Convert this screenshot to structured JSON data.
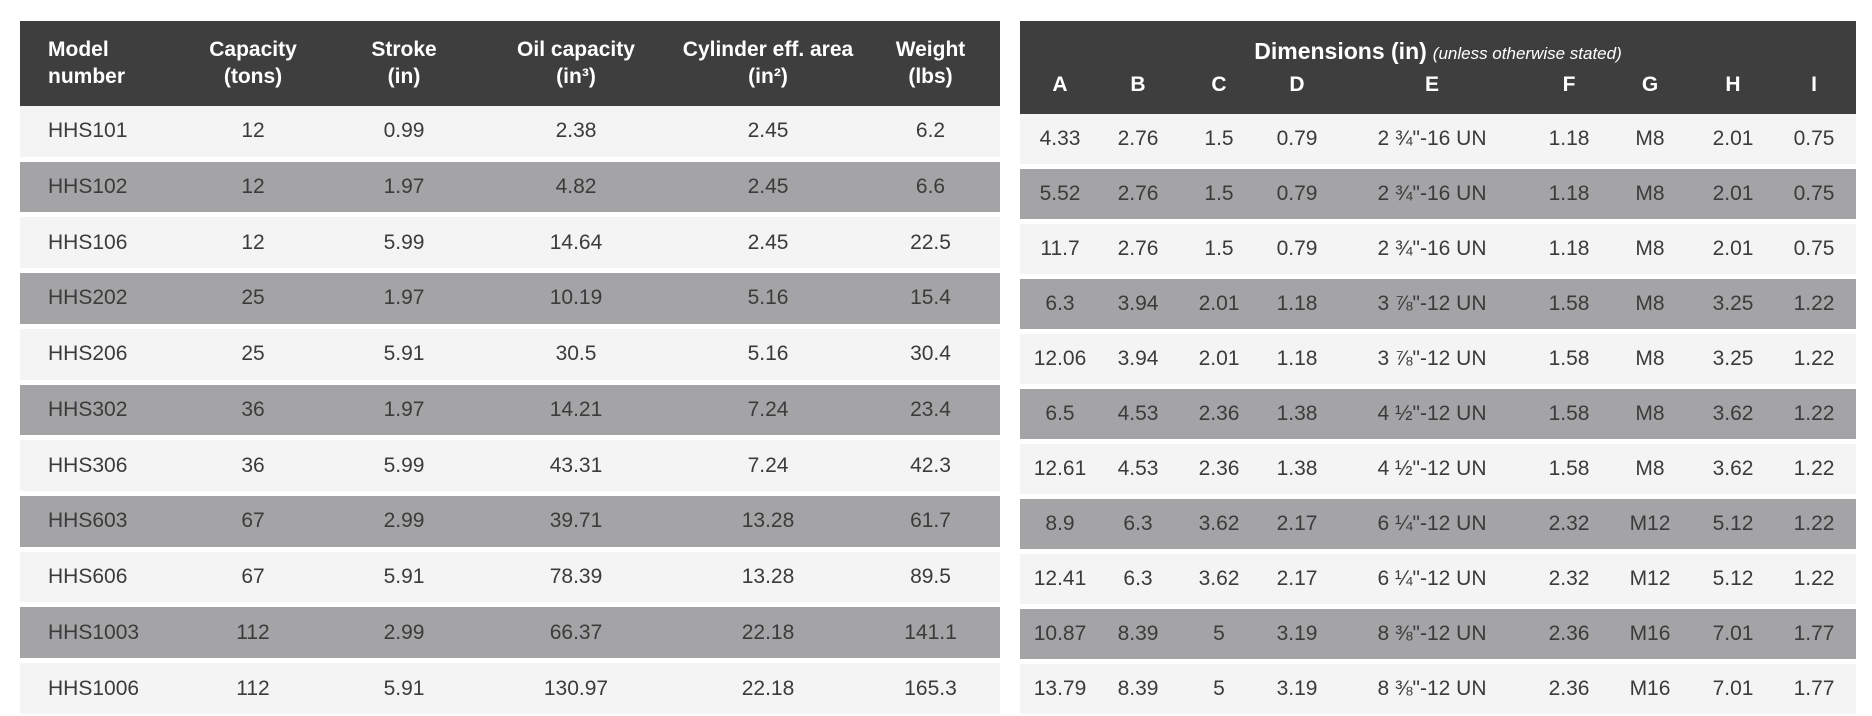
{
  "colors": {
    "header_bg": "#3e3e3e",
    "header_text": "#ffffff",
    "row_light": "#f4f4f4",
    "row_gray": "#a4a4a6",
    "body_text": "#3b3b3b"
  },
  "left_table": {
    "headers": [
      {
        "l1": "Model",
        "l2": "number"
      },
      {
        "l1": "Capacity",
        "l2": "(tons)"
      },
      {
        "l1": "Stroke",
        "l2": "(in)"
      },
      {
        "l1": "Oil capacity",
        "l2": "(in³)"
      },
      {
        "l1": "Cylinder eff. area",
        "l2": "(in²)"
      },
      {
        "l1": "Weight",
        "l2": "(lbs)"
      }
    ],
    "rows": [
      [
        "HHS101",
        "12",
        "0.99",
        "2.38",
        "2.45",
        "6.2"
      ],
      [
        "HHS102",
        "12",
        "1.97",
        "4.82",
        "2.45",
        "6.6"
      ],
      [
        "HHS106",
        "12",
        "5.99",
        "14.64",
        "2.45",
        "22.5"
      ],
      [
        "HHS202",
        "25",
        "1.97",
        "10.19",
        "5.16",
        "15.4"
      ],
      [
        "HHS206",
        "25",
        "5.91",
        "30.5",
        "5.16",
        "30.4"
      ],
      [
        "HHS302",
        "36",
        "1.97",
        "14.21",
        "7.24",
        "23.4"
      ],
      [
        "HHS306",
        "36",
        "5.99",
        "43.31",
        "7.24",
        "42.3"
      ],
      [
        "HHS603",
        "67",
        "2.99",
        "39.71",
        "13.28",
        "61.7"
      ],
      [
        "HHS606",
        "67",
        "5.91",
        "78.39",
        "13.28",
        "89.5"
      ],
      [
        "HHS1003",
        "112",
        "2.99",
        "66.37",
        "22.18",
        "141.1"
      ],
      [
        "HHS1006",
        "112",
        "5.91",
        "130.97",
        "22.18",
        "165.3"
      ]
    ]
  },
  "right_table": {
    "title": "Dimensions (in)",
    "subtitle": "(unless otherwise stated)",
    "columns": [
      "A",
      "B",
      "C",
      "D",
      "E",
      "F",
      "G",
      "H",
      "I"
    ],
    "rows": [
      [
        "4.33",
        "2.76",
        "1.5",
        "0.79",
        "2 ¾\"-16 UN",
        "1.18",
        "M8",
        "2.01",
        "0.75"
      ],
      [
        "5.52",
        "2.76",
        "1.5",
        "0.79",
        "2 ¾\"-16 UN",
        "1.18",
        "M8",
        "2.01",
        "0.75"
      ],
      [
        "11.7",
        "2.76",
        "1.5",
        "0.79",
        "2 ¾\"-16 UN",
        "1.18",
        "M8",
        "2.01",
        "0.75"
      ],
      [
        "6.3",
        "3.94",
        "2.01",
        "1.18",
        "3 ⅞\"-12 UN",
        "1.58",
        "M8",
        "3.25",
        "1.22"
      ],
      [
        "12.06",
        "3.94",
        "2.01",
        "1.18",
        "3 ⅞\"-12 UN",
        "1.58",
        "M8",
        "3.25",
        "1.22"
      ],
      [
        "6.5",
        "4.53",
        "2.36",
        "1.38",
        "4 ½\"-12 UN",
        "1.58",
        "M8",
        "3.62",
        "1.22"
      ],
      [
        "12.61",
        "4.53",
        "2.36",
        "1.38",
        "4 ½\"-12 UN",
        "1.58",
        "M8",
        "3.62",
        "1.22"
      ],
      [
        "8.9",
        "6.3",
        "3.62",
        "2.17",
        "6 ¼\"-12 UN",
        "2.32",
        "M12",
        "5.12",
        "1.22"
      ],
      [
        "12.41",
        "6.3",
        "3.62",
        "2.17",
        "6 ¼\"-12 UN",
        "2.32",
        "M12",
        "5.12",
        "1.22"
      ],
      [
        "10.87",
        "8.39",
        "5",
        "3.19",
        "8 ⅜\"-12 UN",
        "2.36",
        "M16",
        "7.01",
        "1.77"
      ],
      [
        "13.79",
        "8.39",
        "5",
        "3.19",
        "8 ⅜\"-12 UN",
        "2.36",
        "M16",
        "7.01",
        "1.77"
      ]
    ]
  }
}
